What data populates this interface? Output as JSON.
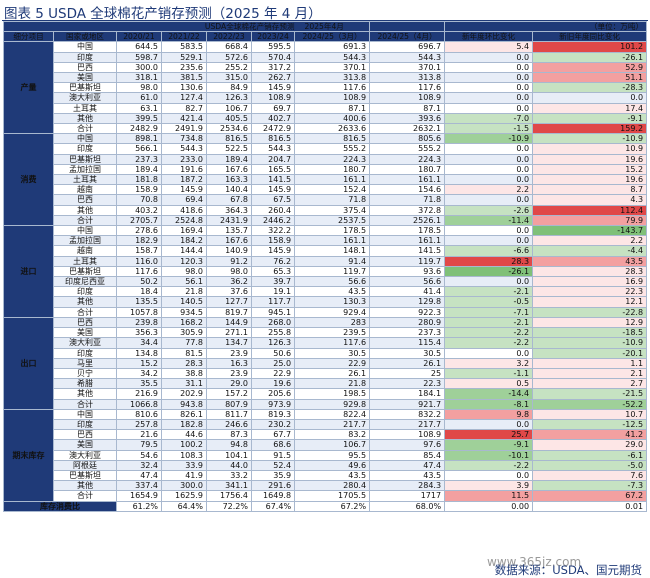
{
  "figure_title": "图表 5 USDA 全球棉花产销存预测（2025 年 4 月）",
  "table_title": "USDA全球棉花产销存预测",
  "table_month": "2025年4月",
  "unit": "（单位：万吨）",
  "columns": [
    "细分项目",
    "国家或地区",
    "2020/21",
    "2021/22",
    "2022/23",
    "2023/24",
    "2024/25（3月）",
    "2024/25（4月）",
    "新年度环比变化",
    "新旧年度同比变化"
  ],
  "groups": [
    {
      "name": "产量",
      "rows": [
        [
          "中国",
          "644.5",
          "583.5",
          "668.4",
          "595.5",
          "691.3",
          "696.7",
          "5.4",
          "101.2"
        ],
        [
          "印度",
          "598.7",
          "529.1",
          "572.6",
          "570.4",
          "544.3",
          "544.3",
          "0.0",
          "-26.1"
        ],
        [
          "巴西",
          "300.0",
          "235.6",
          "255.2",
          "317.2",
          "370.1",
          "370.1",
          "0.0",
          "52.9"
        ],
        [
          "美国",
          "318.1",
          "381.5",
          "315.0",
          "262.7",
          "313.8",
          "313.8",
          "0.0",
          "51.1"
        ],
        [
          "巴基斯坦",
          "98.0",
          "130.6",
          "84.9",
          "145.9",
          "117.6",
          "117.6",
          "0.0",
          "-28.3"
        ],
        [
          "澳大利亚",
          "61.0",
          "127.4",
          "126.3",
          "108.9",
          "108.9",
          "108.9",
          "0.0",
          "0.0"
        ],
        [
          "土耳其",
          "63.1",
          "82.7",
          "106.7",
          "69.7",
          "87.1",
          "87.1",
          "0.0",
          "17.4"
        ],
        [
          "其他",
          "399.5",
          "421.4",
          "405.5",
          "402.7",
          "400.6",
          "393.6",
          "-7.0",
          "-9.1"
        ],
        [
          "合计",
          "2482.9",
          "2491.9",
          "2534.6",
          "2472.9",
          "2633.6",
          "2632.1",
          "-1.5",
          "159.2"
        ]
      ]
    },
    {
      "name": "消费",
      "rows": [
        [
          "中国",
          "898.1",
          "734.8",
          "816.5",
          "816.5",
          "816.5",
          "805.6",
          "-10.9",
          "-10.9"
        ],
        [
          "印度",
          "566.1",
          "544.3",
          "522.5",
          "544.3",
          "555.2",
          "555.2",
          "0.0",
          "10.9"
        ],
        [
          "巴基斯坦",
          "237.3",
          "233.0",
          "189.4",
          "204.7",
          "224.3",
          "224.3",
          "0.0",
          "19.6"
        ],
        [
          "孟加拉国",
          "189.4",
          "191.6",
          "167.6",
          "165.5",
          "180.7",
          "180.7",
          "0.0",
          "15.2"
        ],
        [
          "土耳其",
          "181.8",
          "187.2",
          "163.3",
          "141.5",
          "161.1",
          "161.1",
          "0.0",
          "19.6"
        ],
        [
          "越南",
          "158.9",
          "145.9",
          "140.4",
          "145.9",
          "152.4",
          "154.6",
          "2.2",
          "8.7"
        ],
        [
          "巴西",
          "70.8",
          "69.4",
          "67.8",
          "67.5",
          "71.8",
          "71.8",
          "0.0",
          "4.3"
        ],
        [
          "其他",
          "403.2",
          "418.6",
          "364.3",
          "260.4",
          "375.4",
          "372.8",
          "-2.6",
          "112.4"
        ],
        [
          "合计",
          "2705.7",
          "2524.8",
          "2431.9",
          "2446.2",
          "2537.5",
          "2526.1",
          "-11.4",
          "79.9"
        ]
      ]
    },
    {
      "name": "进口",
      "rows": [
        [
          "中国",
          "278.6",
          "169.4",
          "135.7",
          "322.2",
          "178.5",
          "178.5",
          "0.0",
          "-143.7"
        ],
        [
          "孟加拉国",
          "182.9",
          "184.2",
          "167.6",
          "158.9",
          "161.1",
          "161.1",
          "0.0",
          "2.2"
        ],
        [
          "越南",
          "158.7",
          "144.4",
          "140.9",
          "145.9",
          "148.1",
          "141.5",
          "-6.6",
          "-4.4"
        ],
        [
          "土耳其",
          "116.0",
          "120.3",
          "91.2",
          "76.2",
          "91.4",
          "119.7",
          "28.3",
          "43.5"
        ],
        [
          "巴基斯坦",
          "117.6",
          "98.0",
          "98.0",
          "65.3",
          "119.7",
          "93.6",
          "-26.1",
          "28.3"
        ],
        [
          "印度尼西亚",
          "50.2",
          "56.1",
          "36.2",
          "39.7",
          "56.6",
          "56.6",
          "0.0",
          "16.9"
        ],
        [
          "印度",
          "18.4",
          "21.8",
          "37.6",
          "19.1",
          "43.5",
          "41.4",
          "-2.1",
          "22.3"
        ],
        [
          "其他",
          "135.5",
          "140.5",
          "127.7",
          "117.7",
          "130.3",
          "129.8",
          "-0.5",
          "12.1"
        ],
        [
          "合计",
          "1057.8",
          "934.5",
          "819.7",
          "945.1",
          "929.4",
          "922.3",
          "-7.1",
          "-22.8"
        ]
      ]
    },
    {
      "name": "出口",
      "rows": [
        [
          "巴西",
          "239.8",
          "168.2",
          "144.9",
          "268.0",
          "283",
          "280.9",
          "-2.1",
          "12.9"
        ],
        [
          "美国",
          "356.3",
          "305.9",
          "271.1",
          "255.8",
          "239.5",
          "237.3",
          "-2.2",
          "-18.5"
        ],
        [
          "澳大利亚",
          "34.4",
          "77.8",
          "134.7",
          "126.3",
          "117.6",
          "115.4",
          "-2.2",
          "-10.9"
        ],
        [
          "印度",
          "134.8",
          "81.5",
          "23.9",
          "50.6",
          "30.5",
          "30.5",
          "0.0",
          "-20.1"
        ],
        [
          "马里",
          "15.2",
          "28.3",
          "16.3",
          "25.0",
          "22.9",
          "26.1",
          "3.2",
          "1.1"
        ],
        [
          "贝宁",
          "34.2",
          "38.8",
          "23.9",
          "22.9",
          "26.1",
          "25",
          "-1.1",
          "2.1"
        ],
        [
          "希腊",
          "35.5",
          "31.1",
          "29.0",
          "19.6",
          "21.8",
          "22.3",
          "0.5",
          "2.7"
        ],
        [
          "其他",
          "216.9",
          "202.9",
          "157.2",
          "205.6",
          "198.5",
          "184.1",
          "-14.4",
          "-21.5"
        ],
        [
          "合计",
          "1066.8",
          "943.8",
          "807.9",
          "973.9",
          "929.8",
          "921.7",
          "-8.1",
          "-52.2"
        ]
      ]
    },
    {
      "name": "期末库存",
      "rows": [
        [
          "中国",
          "810.6",
          "826.1",
          "811.7",
          "819.3",
          "822.4",
          "832.2",
          "9.8",
          "10.7"
        ],
        [
          "印度",
          "257.8",
          "182.8",
          "246.6",
          "230.2",
          "217.7",
          "217.7",
          "0.0",
          "-12.5"
        ],
        [
          "巴西",
          "21.6",
          "44.6",
          "87.3",
          "67.7",
          "83.2",
          "108.9",
          "25.7",
          "41.2"
        ],
        [
          "美国",
          "79.5",
          "100.2",
          "94.8",
          "68.6",
          "106.7",
          "97.6",
          "-9.1",
          "29.0"
        ],
        [
          "澳大利亚",
          "54.6",
          "108.3",
          "104.1",
          "91.5",
          "95.5",
          "85.4",
          "-10.1",
          "-6.1"
        ],
        [
          "阿根廷",
          "32.4",
          "33.9",
          "44.0",
          "52.4",
          "49.6",
          "47.4",
          "-2.2",
          "-5.0"
        ],
        [
          "巴基斯坦",
          "47.4",
          "41.9",
          "33.2",
          "35.9",
          "43.5",
          "43.5",
          "0.0",
          "7.6"
        ],
        [
          "其他",
          "337.4",
          "300.0",
          "341.1",
          "291.6",
          "280.4",
          "284.3",
          "3.9",
          "-7.3"
        ],
        [
          "合计",
          "1654.9",
          "1625.9",
          "1756.4",
          "1649.8",
          "1705.5",
          "1717",
          "11.5",
          "67.2"
        ]
      ]
    }
  ],
  "ratio_row": {
    "label": "库存消费比",
    "values": [
      "61.2%",
      "64.4%",
      "72.2%",
      "67.4%",
      "67.2%",
      "68.0%",
      "0.00",
      "0.01"
    ]
  },
  "source": "数据来源：USDA、国元期货",
  "watermark": "www.365jz.com",
  "colors": {
    "header_bg": "#1f3a78",
    "row_alt": "#e7edf7",
    "green_scale": [
      "#c6e2c2",
      "#9fd099",
      "#7fc078"
    ],
    "red_scale": [
      "#fde6e6",
      "#f3a0a0",
      "#e04848"
    ],
    "title_text": "#1f3a78"
  }
}
